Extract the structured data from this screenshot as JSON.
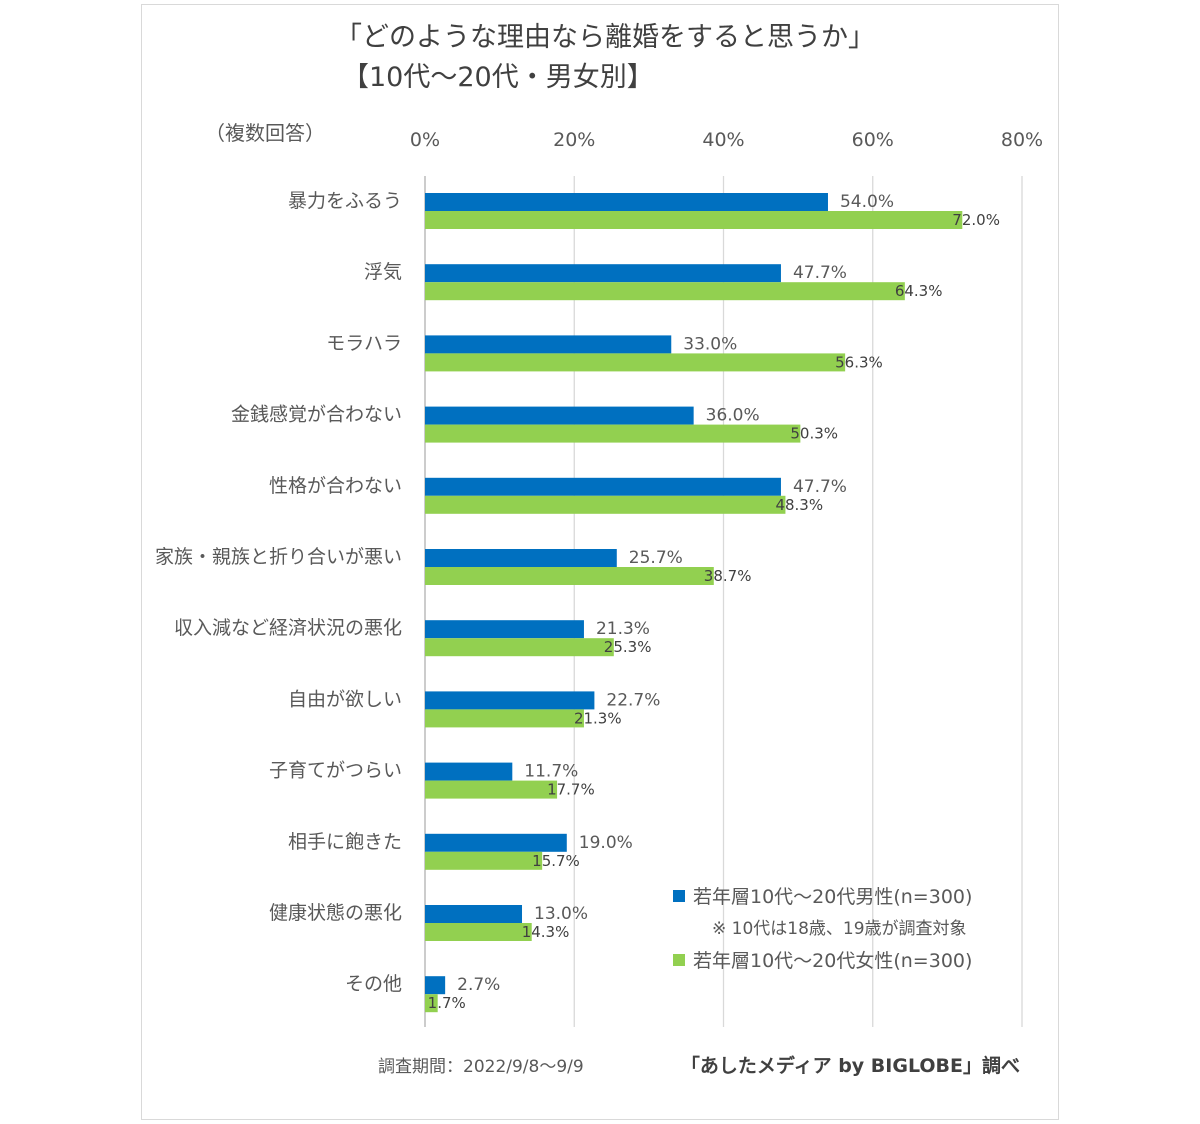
{
  "chart_data": {
    "type": "bar",
    "title": "「どのような理由なら離婚をすると思うか」",
    "subtitle": "【10代～20代・男女別】",
    "note_multi": "（複数回答）",
    "categories": [
      "暴力をふるう",
      "浮気",
      "モラハラ",
      "金銭感覚が合わない",
      "性格が合わない",
      "家族・親族と折り合いが悪い",
      "収入減など経済状況の悪化",
      "自由が欲しい",
      "子育てがつらい",
      "相手に飽きた",
      "健康状態の悪化",
      "その他"
    ],
    "series": [
      {
        "name": "若年層10代～20代男性(n=300)",
        "color": "#0070c0",
        "values": [
          54.0,
          47.7,
          33.0,
          36.0,
          47.7,
          25.7,
          21.3,
          22.7,
          11.7,
          19.0,
          13.0,
          2.7
        ],
        "labels": [
          "54.0%",
          "47.7%",
          "33.0%",
          "36.0%",
          "47.7%",
          "25.7%",
          "21.3%",
          "22.7%",
          "11.7%",
          "19.0%",
          "13.0%",
          "2.7%"
        ]
      },
      {
        "name": "若年層10代～20代女性(n=300)",
        "color": "#92d050",
        "values": [
          72.0,
          64.3,
          56.3,
          50.3,
          48.3,
          38.7,
          25.3,
          21.3,
          17.7,
          15.7,
          14.3,
          1.7
        ],
        "labels": [
          "72.0%",
          "64.3%",
          "56.3%",
          "50.3%",
          "48.3%",
          "38.7%",
          "25.3%",
          "21.3%",
          "17.7%",
          "15.7%",
          "14.3%",
          "1.7%"
        ]
      }
    ],
    "xlim": [
      0,
      80
    ],
    "ticks": [
      0,
      20,
      40,
      60,
      80
    ],
    "tick_labels": [
      "0%",
      "20%",
      "40%",
      "60%",
      "80%"
    ],
    "legend_note": "※ 10代は18歳、19歳が調査対象",
    "legend_position": "bottom-right",
    "grid": true,
    "footer_period": "調査期間：2022/9/8～9/9",
    "footer_source": "「あしたメディア by BIGLOBE」調べ"
  }
}
